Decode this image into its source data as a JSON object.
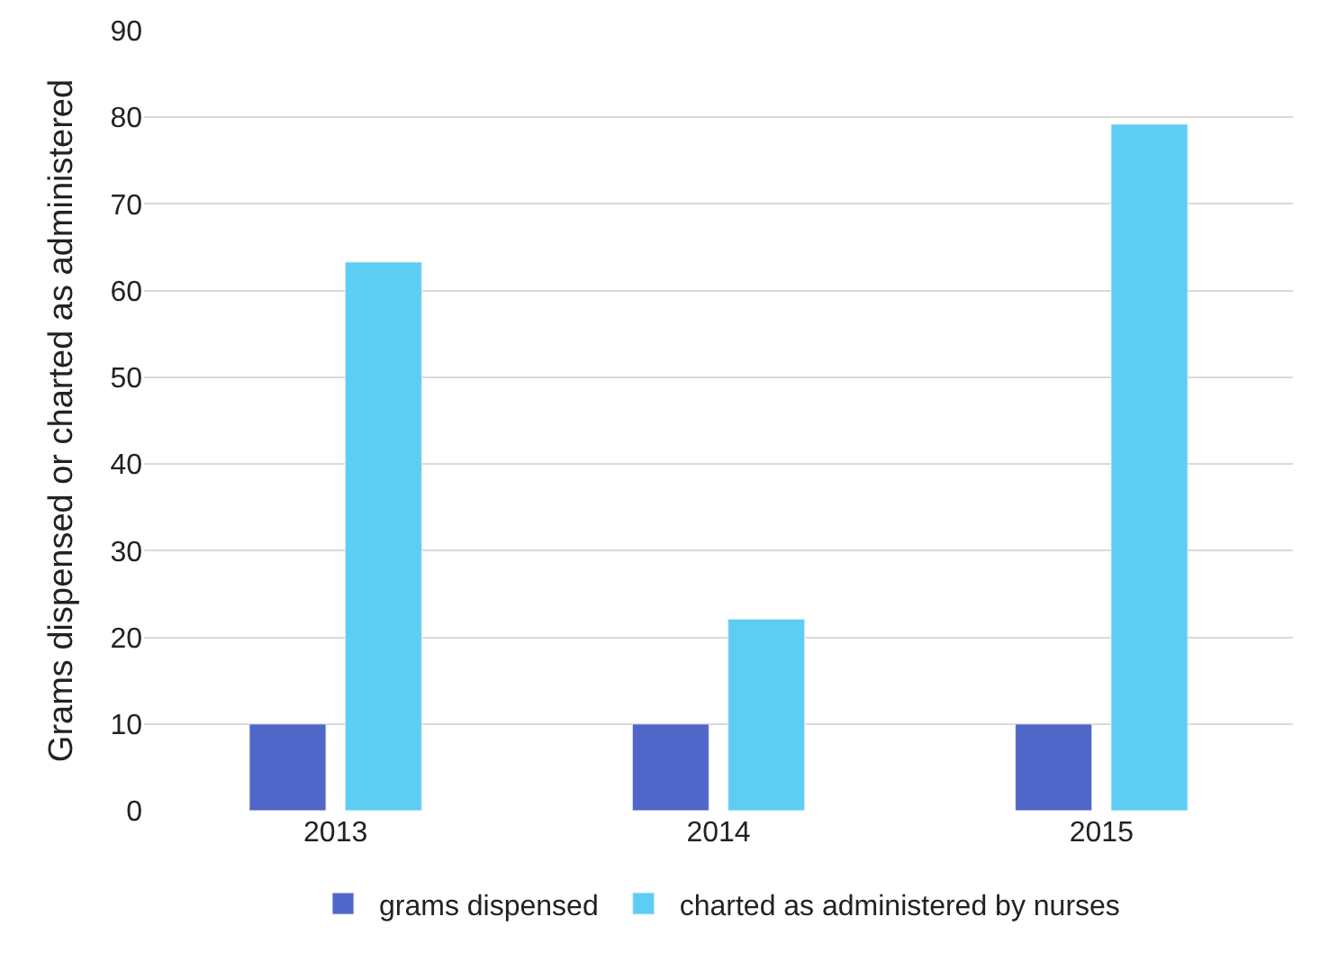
{
  "chart_data": {
    "type": "bar",
    "ylabel": "Grams dispensed or charted as administered",
    "categories": [
      "2013",
      "2014",
      "2015"
    ],
    "series": [
      {
        "name": "grams dispensed",
        "color": "#5066c8",
        "values": [
          10,
          10,
          10
        ]
      },
      {
        "name": "charted as administered by nurses",
        "color": "#5ecdf3",
        "values": [
          63.3,
          22.1,
          79.2
        ]
      }
    ],
    "ylim": [
      0,
      90
    ],
    "yticks": [
      0,
      10,
      20,
      30,
      40,
      50,
      60,
      70,
      80,
      90
    ],
    "grid": "y",
    "legend": "bottom"
  }
}
